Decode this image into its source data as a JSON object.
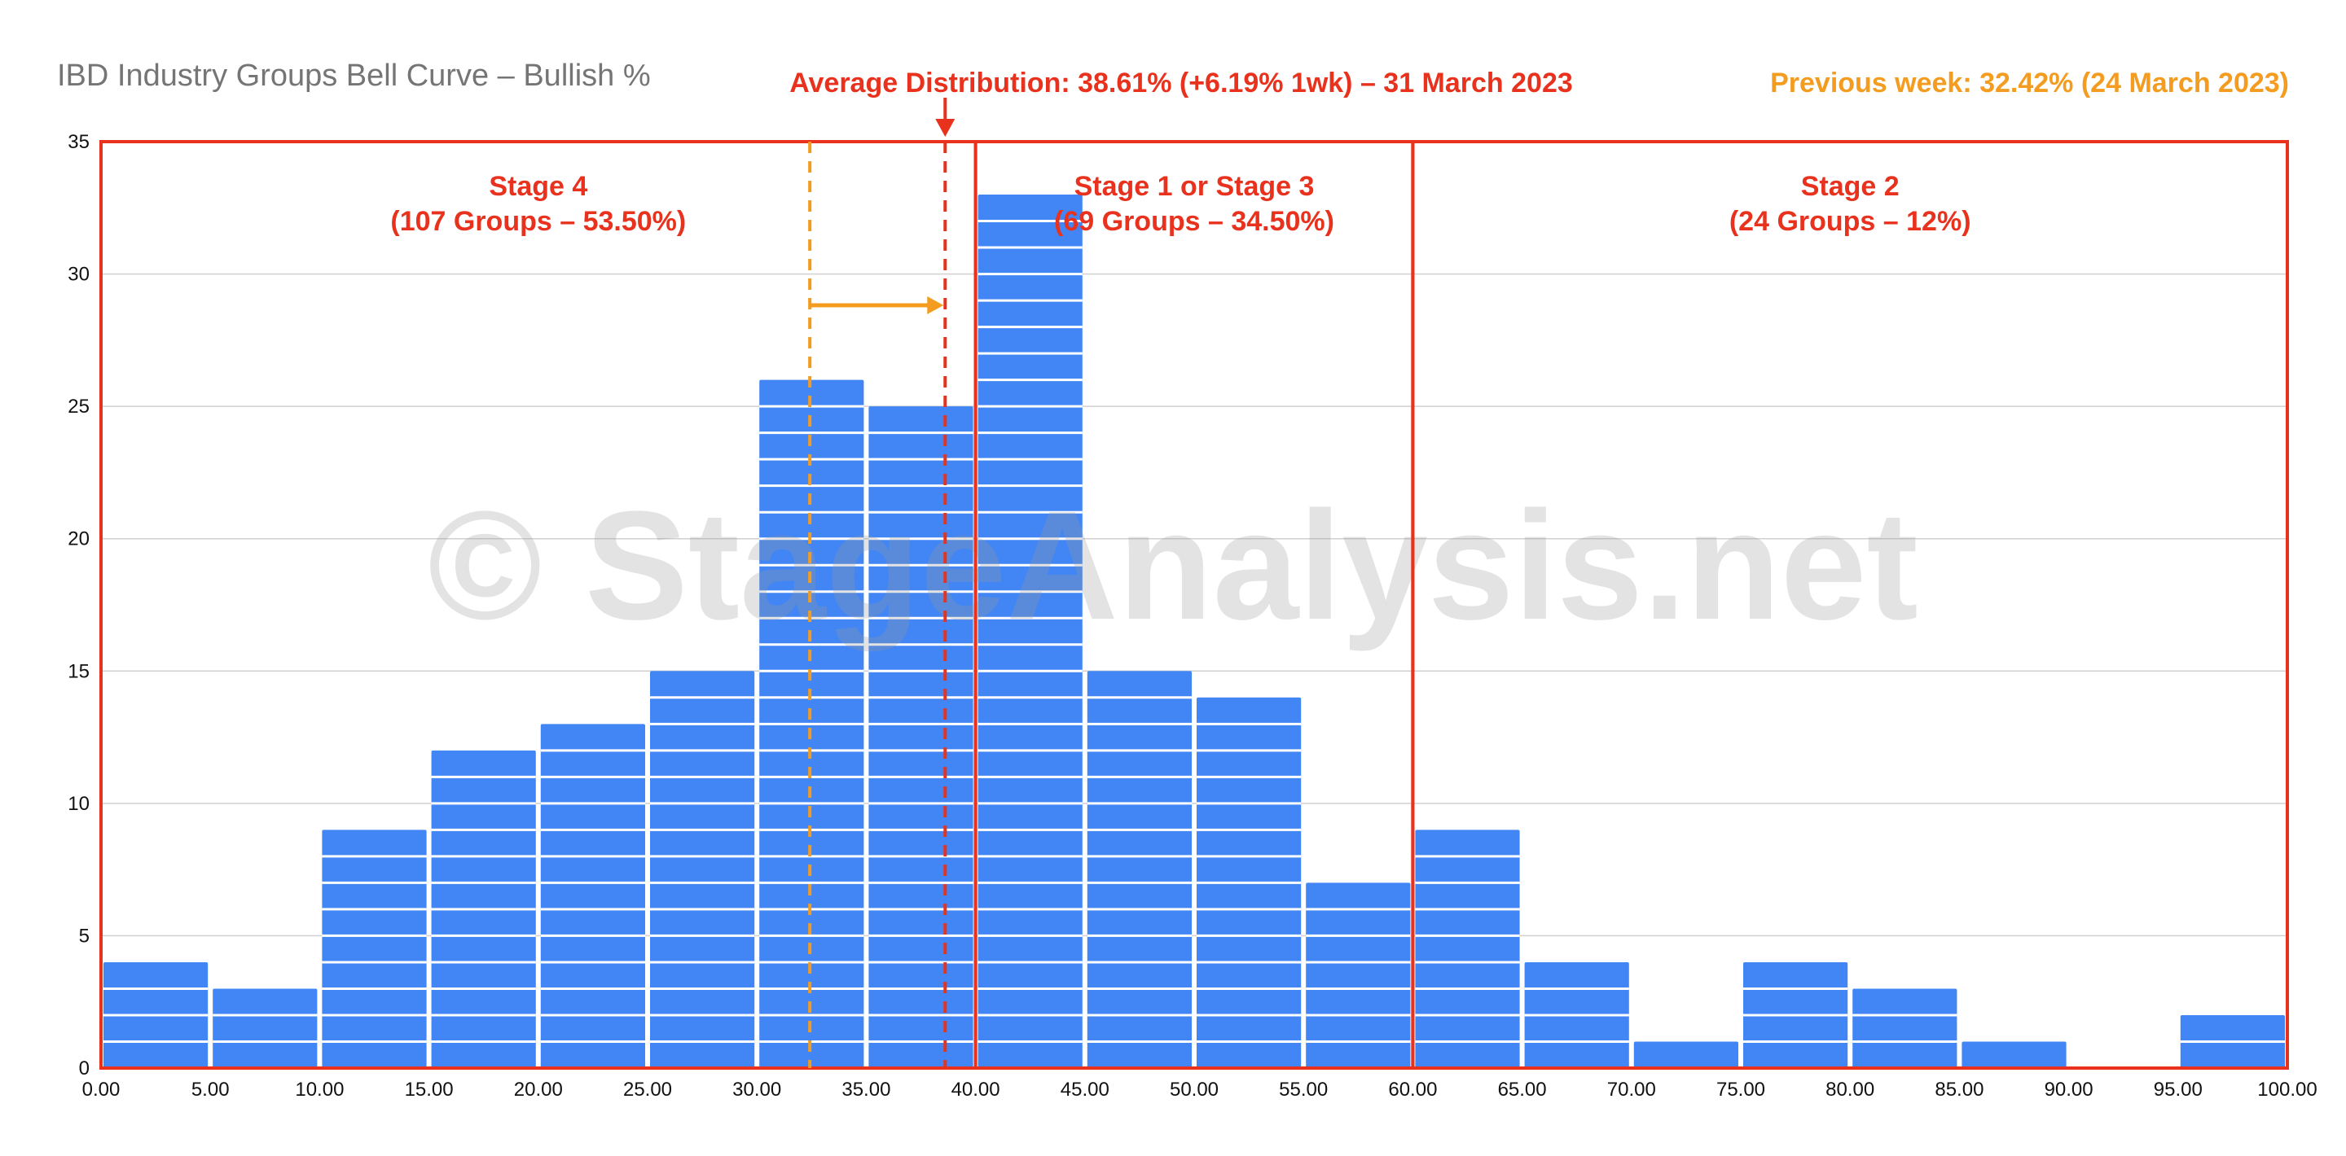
{
  "title": "IBD Industry Groups Bell Curve – Bullish %",
  "annotations": {
    "average_distribution": "Average Distribution: 38.61% (+6.19% 1wk) – 31 March 2023",
    "previous_week": "Previous week: 32.42% (24 March 2023)",
    "average_value": 38.61,
    "previous_value": 32.42
  },
  "watermark": "© StageAnalysis.net",
  "stages": [
    {
      "name": "Stage 4",
      "detail": "(107 Groups – 53.50%)",
      "from": 0,
      "to": 40
    },
    {
      "name": "Stage 1 or Stage 3",
      "detail": "(69 Groups – 34.50%)",
      "from": 40,
      "to": 60
    },
    {
      "name": "Stage 2",
      "detail": "(24 Groups – 12%)",
      "from": 60,
      "to": 100
    }
  ],
  "colors": {
    "bar": "#4285f4",
    "stage_box": "#e8321e",
    "average_line": "#e8321e",
    "previous_line": "#f39c1f",
    "previous_text": "#f39c1f",
    "average_text": "#e8321e",
    "grid": "#d0d0d0"
  },
  "chart_data": {
    "type": "bar",
    "x_bins": [
      0,
      5,
      10,
      15,
      20,
      25,
      30,
      35,
      40,
      45,
      50,
      55,
      60,
      65,
      70,
      75,
      80,
      85,
      90,
      95
    ],
    "bin_width": 5,
    "values": [
      4,
      3,
      9,
      12,
      13,
      15,
      26,
      25,
      33,
      15,
      14,
      7,
      9,
      4,
      1,
      4,
      3,
      1,
      0,
      2
    ],
    "x_tick_labels": [
      "0.00",
      "5.00",
      "10.00",
      "15.00",
      "20.00",
      "25.00",
      "30.00",
      "35.00",
      "40.00",
      "45.00",
      "50.00",
      "55.00",
      "60.00",
      "65.00",
      "70.00",
      "75.00",
      "80.00",
      "85.00",
      "90.00",
      "95.00",
      "100.00"
    ],
    "y_tick_labels": [
      "0",
      "5",
      "10",
      "15",
      "20",
      "25",
      "30",
      "35"
    ],
    "xlim": [
      0,
      100
    ],
    "ylim": [
      0,
      35
    ],
    "grid": true,
    "stacked_unit_segments": true
  }
}
